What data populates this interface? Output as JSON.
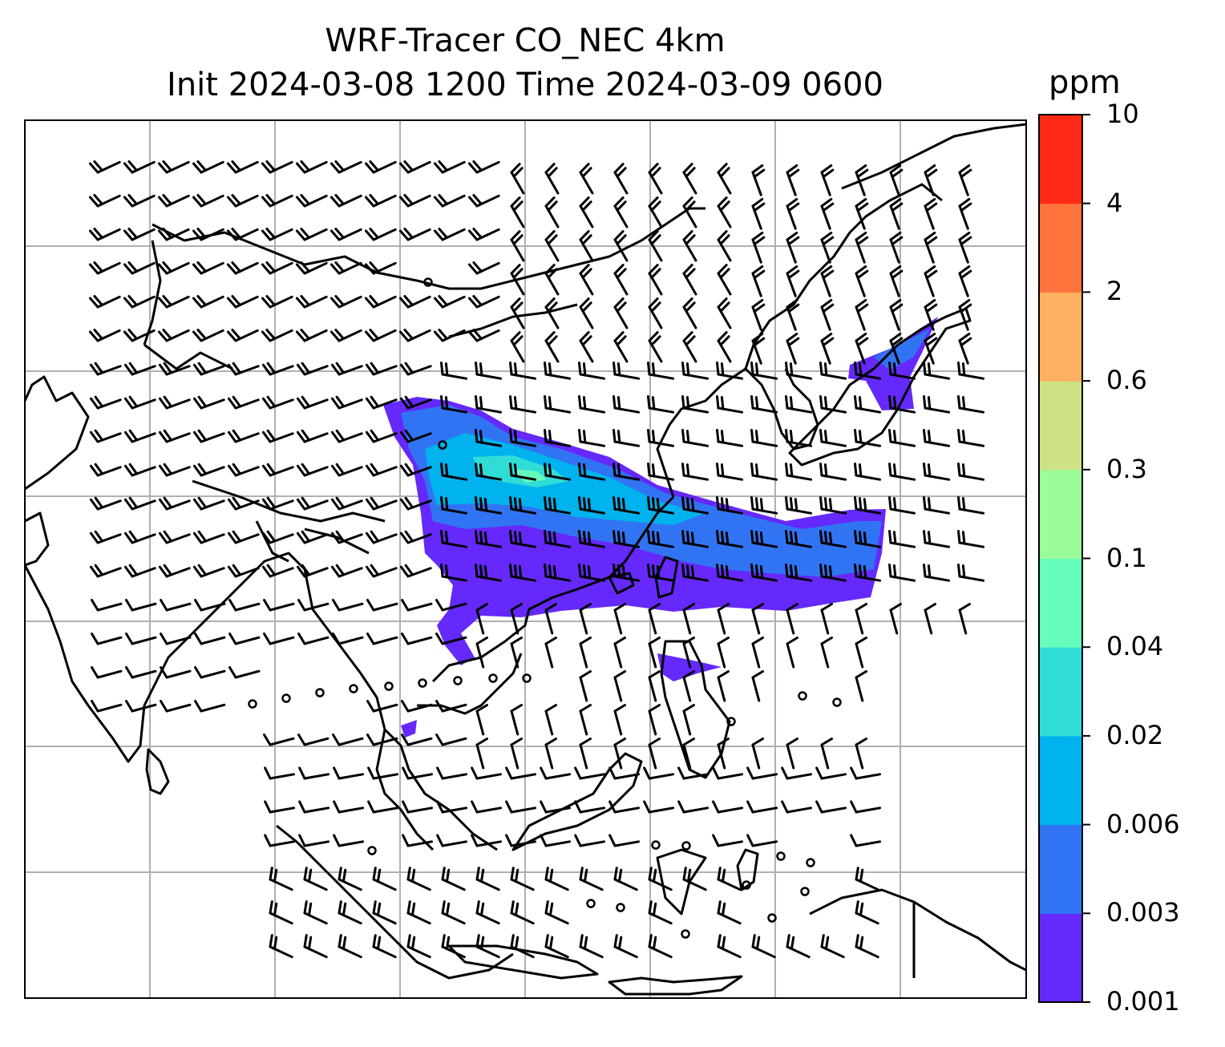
{
  "title": {
    "line1": "WRF-Tracer CO_NEC 4km",
    "line2": "Init 2024-03-08 1200 Time 2024-03-09 0600"
  },
  "colorbar": {
    "unit": "ppm",
    "levels": [
      "0.001",
      "0.003",
      "0.006",
      "0.02",
      "0.04",
      "0.1",
      "0.3",
      "0.6",
      "2",
      "4",
      "10"
    ],
    "colors": [
      "#6529fb",
      "#3174f3",
      "#00b2ee",
      "#30dcd6",
      "#66fcbc",
      "#9afc98",
      "#cde285",
      "#ffb060",
      "#ff733c",
      "#ff2a15"
    ]
  },
  "map": {
    "gridlines": true,
    "grid_color": "#b0b0b0",
    "coastline_color": "#000000"
  }
}
